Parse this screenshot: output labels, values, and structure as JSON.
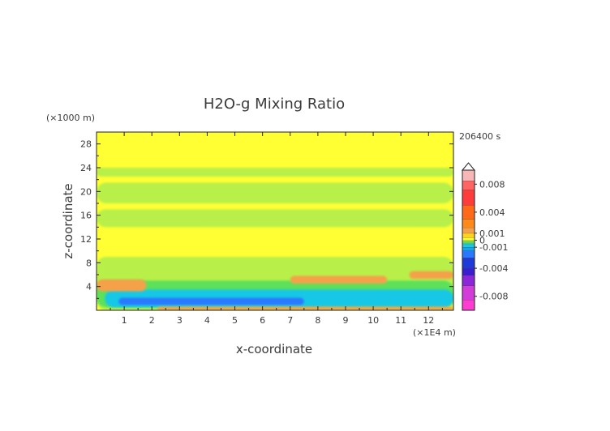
{
  "chart_data": {
    "type": "heatmap",
    "title": "H2O-g Mixing Ratio",
    "xlabel": "x-coordinate",
    "ylabel": "z-coordinate",
    "x_unit": "(×1E4 m)",
    "y_unit": "(×1000 m)",
    "time_label": "206400 s",
    "xlim": [
      0,
      12.9
    ],
    "ylim": [
      0,
      30
    ],
    "x_ticks": [
      "1",
      "2",
      "3",
      "4",
      "5",
      "6",
      "7",
      "8",
      "9",
      "10",
      "11",
      "12"
    ],
    "y_ticks": [
      "4",
      "8",
      "12",
      "16",
      "20",
      "24",
      "28"
    ],
    "colorbar": {
      "range": [
        -0.01,
        0.01
      ],
      "labels": [
        "0.008",
        "0.004",
        "0.001",
        "0",
        "-0.001",
        "-0.004",
        "-0.008"
      ],
      "label_values": [
        0.008,
        0.004,
        0.001,
        0,
        -0.001,
        -0.004,
        -0.008
      ],
      "colors": {
        "top": "#f7b7b7",
        "red": "#ff3c3c",
        "orange_red": "#ff6a1a",
        "orange": "#f5a14a",
        "yellow_orange": "#ffd21e",
        "yellow": "#ffff33",
        "lime": "#b8f04a",
        "green": "#5de05a",
        "cyan": "#19c8e6",
        "blue": "#2a78ff",
        "dark_blue": "#1f3ad6",
        "violet": "#8a28d8",
        "magenta": "#ff3cd2"
      }
    },
    "regions": [
      {
        "level": "yellow",
        "x": [
          0,
          12.9
        ],
        "z": [
          0,
          30
        ]
      },
      {
        "level": "lime",
        "x": [
          0,
          12.9
        ],
        "z": [
          22.5,
          24
        ]
      },
      {
        "level": "lime",
        "x": [
          0,
          12.9
        ],
        "z": [
          18,
          21.5
        ]
      },
      {
        "level": "lime",
        "x": [
          0,
          12.9
        ],
        "z": [
          14,
          17
        ]
      },
      {
        "level": "lime",
        "x": [
          0,
          12.9
        ],
        "z": [
          0,
          9
        ]
      },
      {
        "level": "green",
        "x": [
          0,
          12.9
        ],
        "z": [
          0.5,
          5
        ]
      },
      {
        "level": "cyan",
        "x": [
          0.3,
          12.9
        ],
        "z": [
          0.5,
          3.5
        ]
      },
      {
        "level": "blue",
        "x": [
          0.8,
          7.5
        ],
        "z": [
          0.9,
          2.1
        ]
      },
      {
        "level": "orange",
        "x": [
          0,
          1.8
        ],
        "z": [
          3.2,
          5.2
        ]
      },
      {
        "level": "orange",
        "x": [
          7,
          10.5
        ],
        "z": [
          4.5,
          5.8
        ]
      },
      {
        "level": "orange",
        "x": [
          11.3,
          12.9
        ],
        "z": [
          5.3,
          6.6
        ]
      },
      {
        "level": "orange",
        "x": [
          2.2,
          12.9
        ],
        "z": [
          0,
          0.6
        ]
      }
    ]
  }
}
